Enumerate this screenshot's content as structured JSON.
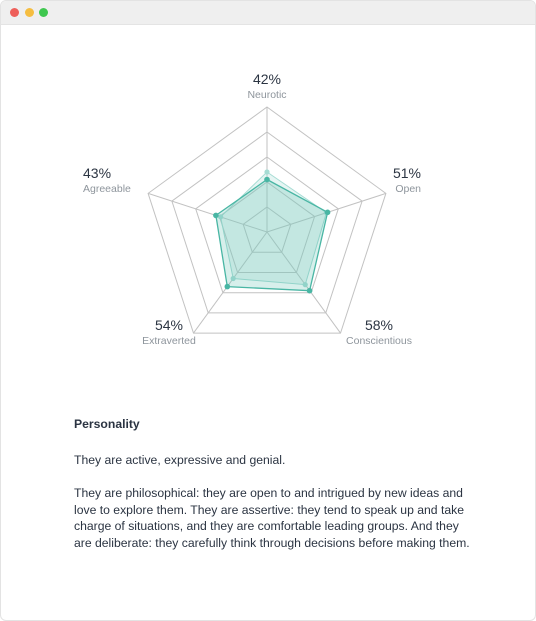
{
  "window": {
    "controls": {
      "close_color": "#ee5f5a",
      "minimize_color": "#f5bd40",
      "maximize_color": "#3fc74f"
    }
  },
  "chart_data": {
    "type": "radar",
    "max": 100,
    "rings": 5,
    "axes": [
      {
        "label": "Neurotic",
        "value": 42,
        "display": "42%"
      },
      {
        "label": "Open",
        "value": 51,
        "display": "51%"
      },
      {
        "label": "Conscientious",
        "value": 58,
        "display": "58%"
      },
      {
        "label": "Extraverted",
        "value": 54,
        "display": "54%"
      },
      {
        "label": "Agreeable",
        "value": 43,
        "display": "43%"
      }
    ],
    "series": [
      {
        "values": [
          42,
          51,
          58,
          54,
          43
        ],
        "color": "#49b6a4"
      },
      {
        "values": [
          48,
          50,
          52,
          46,
          39
        ],
        "color": "#a6dcd4"
      }
    ]
  },
  "summary": {
    "heading": "Personality",
    "paragraphs": [
      "They are active, expressive and genial.",
      "They are philosophical: they are open to and intrigued by new ideas and love to explore them. They are assertive: they tend to speak up and take charge of situations, and they are comfortable leading groups. And they are deliberate: they carefully think through decisions before making them."
    ]
  }
}
